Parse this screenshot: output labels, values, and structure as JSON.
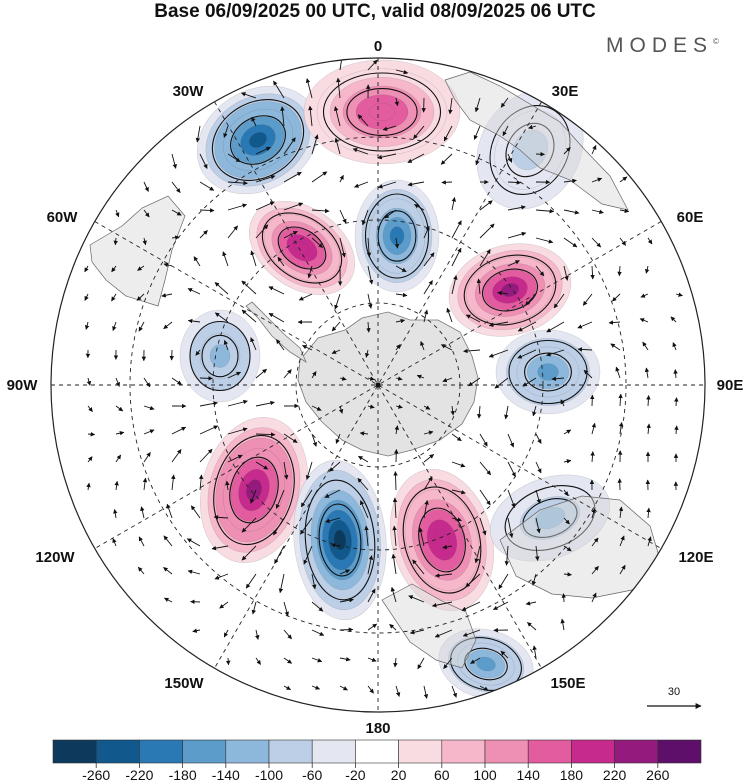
{
  "title": "Base 06/09/2025 00 UTC, valid 08/09/2025 06 UTC",
  "brand": "MODES",
  "brand_mark": "©",
  "map": {
    "projection": "south-polar-stereographic",
    "longitude_labels": {
      "lon_0": "0",
      "lon_30w": "30W",
      "lon_30e": "30E",
      "lon_60w": "60W",
      "lon_60e": "60E",
      "lon_90w": "90W",
      "lon_90e": "90E",
      "lon_120w": "120W",
      "lon_120e": "120E",
      "lon_150w": "150W",
      "lon_150e": "150E",
      "lon_180": "180"
    },
    "reference_vector": "30",
    "anomaly_centers": [
      {
        "name": "center-30w-low",
        "value": -240
      },
      {
        "name": "center-0-high",
        "value": 180
      },
      {
        "name": "center-30e-low",
        "value": -80
      },
      {
        "name": "center-60w-high",
        "value": 220
      },
      {
        "name": "center-polar-low",
        "value": -180
      },
      {
        "name": "center-60e-high",
        "value": 230
      },
      {
        "name": "center-90w-low",
        "value": -120
      },
      {
        "name": "center-90e-low",
        "value": -150
      },
      {
        "name": "center-120w-high",
        "value": 240
      },
      {
        "name": "center-150w-low",
        "value": -260
      },
      {
        "name": "center-150e-high",
        "value": 220
      },
      {
        "name": "center-120e-low",
        "value": -110
      },
      {
        "name": "center-165e-low",
        "value": -160
      }
    ]
  },
  "colorbar": {
    "ticks": [
      "-260",
      "-220",
      "-180",
      "-140",
      "-100",
      "-60",
      "-20",
      "20",
      "60",
      "100",
      "140",
      "180",
      "220",
      "260"
    ],
    "colors": [
      "#0d3a5c",
      "#11588c",
      "#2a79b4",
      "#5c9ccb",
      "#8db8dc",
      "#bccfe6",
      "#e4e6f2",
      "#ffffff",
      "#f9dbe2",
      "#f5b7c9",
      "#ee8fb4",
      "#e25c9f",
      "#c52a8c",
      "#951a7e",
      "#5d0f69"
    ]
  }
}
